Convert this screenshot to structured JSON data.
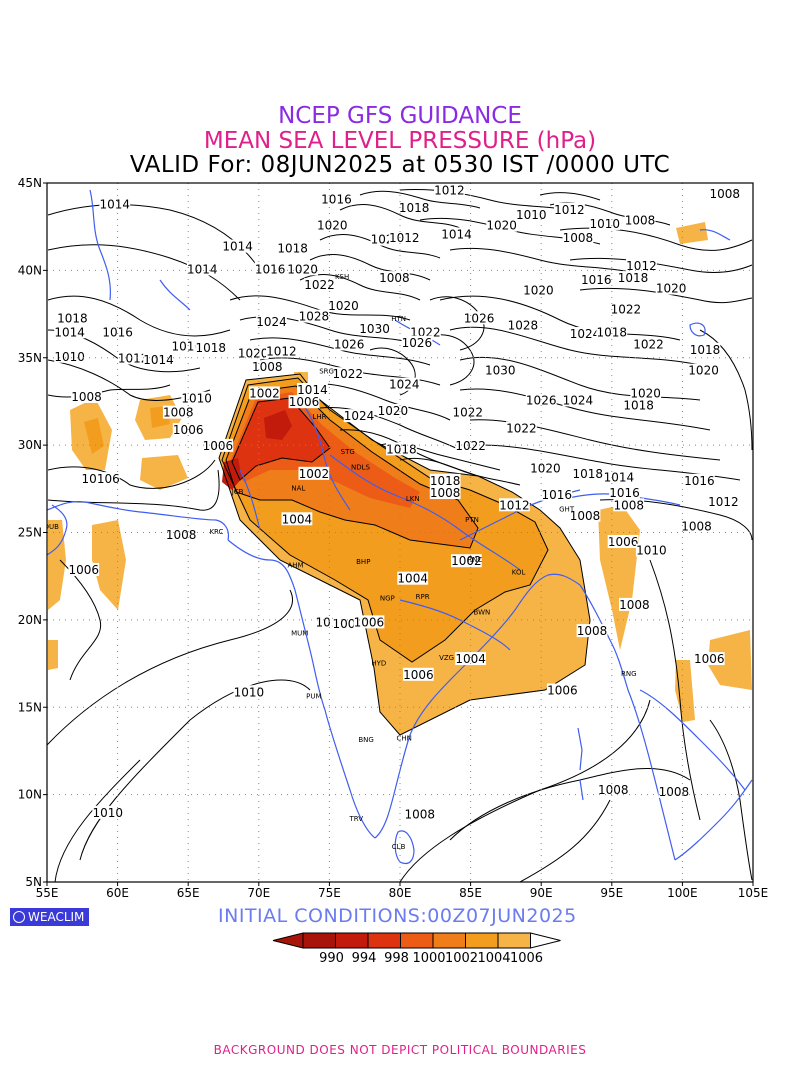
{
  "header": {
    "title_line1": "NCEP GFS GUIDANCE",
    "title_line2": "MEAN SEA LEVEL PRESSURE (hPa)",
    "title_line3": "VALID For: 08JUN2025 at 0530 IST /0000 UTC"
  },
  "colors": {
    "title_line1": "#8a2be2",
    "title_line2": "#e0208a",
    "title_line3": "#000000",
    "init_conditions": "#6b7bf0",
    "footer": "#e0208a",
    "coastline": "#3f5ef0",
    "contour": "#000000",
    "shade_1006": "#f7b446",
    "shade_1004": "#f29d1e",
    "shade_1002": "#ef7d1a",
    "shade_1000": "#ec5c16",
    "shade_998": "#dd3311",
    "shade_994": "#c21b0c",
    "shade_990": "#a8140a"
  },
  "map": {
    "lon_labels": [
      "55E",
      "60E",
      "65E",
      "70E",
      "75E",
      "80E",
      "85E",
      "90E",
      "95E",
      "100E",
      "105E"
    ],
    "lat_labels": [
      "45N",
      "40N",
      "35N",
      "30N",
      "25N",
      "20N",
      "15N",
      "10N",
      "5N"
    ],
    "contour_labels": [
      {
        "text": "1014",
        "lon": 59.8,
        "lat": 43.7
      },
      {
        "text": "1016",
        "lon": 75.5,
        "lat": 44.0
      },
      {
        "text": "1012",
        "lon": 83.5,
        "lat": 44.5
      },
      {
        "text": "1018",
        "lon": 81.0,
        "lat": 43.5
      },
      {
        "text": "1020",
        "lon": 75.2,
        "lat": 42.5
      },
      {
        "text": "1022",
        "lon": 79.0,
        "lat": 41.7
      },
      {
        "text": "1012",
        "lon": 80.3,
        "lat": 41.8
      },
      {
        "text": "1014",
        "lon": 84.0,
        "lat": 42.0
      },
      {
        "text": "1020",
        "lon": 87.2,
        "lat": 42.5
      },
      {
        "text": "1010",
        "lon": 89.3,
        "lat": 43.1
      },
      {
        "text": "1012",
        "lon": 92.0,
        "lat": 43.4
      },
      {
        "text": "1008",
        "lon": 97.0,
        "lat": 42.8
      },
      {
        "text": "1010",
        "lon": 94.5,
        "lat": 42.6
      },
      {
        "text": "1008",
        "lon": 92.6,
        "lat": 41.8
      },
      {
        "text": "1008",
        "lon": 103.0,
        "lat": 44.3
      },
      {
        "text": "1014",
        "lon": 68.5,
        "lat": 41.3
      },
      {
        "text": "1018",
        "lon": 72.4,
        "lat": 41.2
      },
      {
        "text": "1014",
        "lon": 66.0,
        "lat": 40.0
      },
      {
        "text": "1016",
        "lon": 70.8,
        "lat": 40.0
      },
      {
        "text": "1020",
        "lon": 73.1,
        "lat": 40.0
      },
      {
        "text": "1022",
        "lon": 74.3,
        "lat": 39.1
      },
      {
        "text": "1008",
        "lon": 79.6,
        "lat": 39.5
      },
      {
        "text": "1012",
        "lon": 97.1,
        "lat": 40.2
      },
      {
        "text": "1016",
        "lon": 93.9,
        "lat": 39.4
      },
      {
        "text": "1018",
        "lon": 96.5,
        "lat": 39.5
      },
      {
        "text": "1020",
        "lon": 99.2,
        "lat": 38.9
      },
      {
        "text": "1020",
        "lon": 89.8,
        "lat": 38.8
      },
      {
        "text": "1022",
        "lon": 96.0,
        "lat": 37.7
      },
      {
        "text": "1018",
        "lon": 56.8,
        "lat": 37.2
      },
      {
        "text": "1016",
        "lon": 60.0,
        "lat": 36.4
      },
      {
        "text": "1014",
        "lon": 56.6,
        "lat": 36.4
      },
      {
        "text": "1024",
        "lon": 70.9,
        "lat": 37.0
      },
      {
        "text": "1028",
        "lon": 73.9,
        "lat": 37.3
      },
      {
        "text": "1020",
        "lon": 76.0,
        "lat": 37.9
      },
      {
        "text": "1030",
        "lon": 78.2,
        "lat": 36.6
      },
      {
        "text": "1022",
        "lon": 81.8,
        "lat": 36.4
      },
      {
        "text": "1026",
        "lon": 85.6,
        "lat": 37.2
      },
      {
        "text": "1028",
        "lon": 88.7,
        "lat": 36.8
      },
      {
        "text": "1024",
        "lon": 93.1,
        "lat": 36.3
      },
      {
        "text": "1018",
        "lon": 95.0,
        "lat": 36.4
      },
      {
        "text": "1022",
        "lon": 97.6,
        "lat": 35.7
      },
      {
        "text": "1018",
        "lon": 101.6,
        "lat": 35.4
      },
      {
        "text": "1010",
        "lon": 56.6,
        "lat": 35.0
      },
      {
        "text": "1012",
        "lon": 61.1,
        "lat": 34.9
      },
      {
        "text": "1014",
        "lon": 62.9,
        "lat": 34.8
      },
      {
        "text": "1016",
        "lon": 64.9,
        "lat": 35.6
      },
      {
        "text": "1018",
        "lon": 66.6,
        "lat": 35.5
      },
      {
        "text": "1020",
        "lon": 69.6,
        "lat": 35.2
      },
      {
        "text": "1012",
        "lon": 71.6,
        "lat": 35.3
      },
      {
        "text": "1026",
        "lon": 76.4,
        "lat": 35.7
      },
      {
        "text": "1026",
        "lon": 81.2,
        "lat": 35.8
      },
      {
        "text": "1008",
        "lon": 70.6,
        "lat": 34.4
      },
      {
        "text": "1022",
        "lon": 76.3,
        "lat": 34.0
      },
      {
        "text": "1024",
        "lon": 80.3,
        "lat": 33.4
      },
      {
        "text": "1030",
        "lon": 87.1,
        "lat": 34.2
      },
      {
        "text": "1020",
        "lon": 101.5,
        "lat": 34.2
      },
      {
        "text": "1008",
        "lon": 57.8,
        "lat": 32.7
      },
      {
        "text": "1010",
        "lon": 65.6,
        "lat": 32.6
      },
      {
        "text": "1008",
        "lon": 64.3,
        "lat": 31.8
      },
      {
        "text": "1002",
        "lon": 70.4,
        "lat": 32.9
      },
      {
        "text": "1014",
        "lon": 73.8,
        "lat": 33.1
      },
      {
        "text": "1006",
        "lon": 73.2,
        "lat": 32.4
      },
      {
        "text": "1026",
        "lon": 90.0,
        "lat": 32.5
      },
      {
        "text": "1024",
        "lon": 92.6,
        "lat": 32.5
      },
      {
        "text": "1020",
        "lon": 97.4,
        "lat": 32.9
      },
      {
        "text": "1018",
        "lon": 96.9,
        "lat": 32.2
      },
      {
        "text": "1006",
        "lon": 65.0,
        "lat": 30.8
      },
      {
        "text": "1024",
        "lon": 77.1,
        "lat": 31.6
      },
      {
        "text": "1020",
        "lon": 79.5,
        "lat": 31.9
      },
      {
        "text": "1022",
        "lon": 84.8,
        "lat": 31.8
      },
      {
        "text": "1022",
        "lon": 88.6,
        "lat": 30.9
      },
      {
        "text": "1006",
        "lon": 67.1,
        "lat": 29.9
      },
      {
        "text": "1018",
        "lon": 80.1,
        "lat": 29.7
      },
      {
        "text": "1022",
        "lon": 85.0,
        "lat": 29.9
      },
      {
        "text": "1020",
        "lon": 90.3,
        "lat": 28.6
      },
      {
        "text": "1018",
        "lon": 93.3,
        "lat": 28.3
      },
      {
        "text": "1014",
        "lon": 95.5,
        "lat": 28.1
      },
      {
        "text": "1016",
        "lon": 101.2,
        "lat": 27.9
      },
      {
        "text": "1016",
        "lon": 95.9,
        "lat": 27.2
      },
      {
        "text": "1012",
        "lon": 102.9,
        "lat": 26.7
      },
      {
        "text": "1008",
        "lon": 96.2,
        "lat": 26.5
      },
      {
        "text": "10106",
        "lon": 58.8,
        "lat": 28.0
      },
      {
        "text": "1002",
        "lon": 73.9,
        "lat": 28.3
      },
      {
        "text": "1018",
        "lon": 83.2,
        "lat": 27.9
      },
      {
        "text": "1016",
        "lon": 91.1,
        "lat": 27.1
      },
      {
        "text": "1012",
        "lon": 88.1,
        "lat": 26.5
      },
      {
        "text": "1008",
        "lon": 93.1,
        "lat": 25.9
      },
      {
        "text": "1008",
        "lon": 101.0,
        "lat": 25.3
      },
      {
        "text": "1008",
        "lon": 83.2,
        "lat": 27.2
      },
      {
        "text": "1004",
        "lon": 72.7,
        "lat": 25.7
      },
      {
        "text": "1008",
        "lon": 64.5,
        "lat": 24.8
      },
      {
        "text": "1006",
        "lon": 95.8,
        "lat": 24.4
      },
      {
        "text": "1010",
        "lon": 97.8,
        "lat": 23.9
      },
      {
        "text": "1002",
        "lon": 84.7,
        "lat": 23.3
      },
      {
        "text": "1006",
        "lon": 57.6,
        "lat": 22.8
      },
      {
        "text": "1004",
        "lon": 80.9,
        "lat": 22.3
      },
      {
        "text": "1008",
        "lon": 96.6,
        "lat": 20.8
      },
      {
        "text": "1010",
        "lon": 75.1,
        "lat": 19.8
      },
      {
        "text": "1008",
        "lon": 76.3,
        "lat": 19.7
      },
      {
        "text": "1006",
        "lon": 77.8,
        "lat": 19.8
      },
      {
        "text": "1008",
        "lon": 93.6,
        "lat": 19.3
      },
      {
        "text": "1004",
        "lon": 85.0,
        "lat": 17.7
      },
      {
        "text": "1006",
        "lon": 101.9,
        "lat": 17.7
      },
      {
        "text": "1006",
        "lon": 81.3,
        "lat": 16.8
      },
      {
        "text": "1006",
        "lon": 91.5,
        "lat": 15.9
      },
      {
        "text": "1010",
        "lon": 69.3,
        "lat": 15.8
      },
      {
        "text": "1008",
        "lon": 95.1,
        "lat": 10.2
      },
      {
        "text": "1008",
        "lon": 99.4,
        "lat": 10.1
      },
      {
        "text": "1010",
        "lon": 59.3,
        "lat": 8.9
      },
      {
        "text": "1008",
        "lon": 81.4,
        "lat": 8.8
      }
    ],
    "city_labels": [
      {
        "text": "SRG",
        "lon": 74.8,
        "lat": 34.1
      },
      {
        "text": "LHR",
        "lon": 74.3,
        "lat": 31.5
      },
      {
        "text": "STG",
        "lon": 76.3,
        "lat": 29.5
      },
      {
        "text": "NDLS",
        "lon": 77.2,
        "lat": 28.6
      },
      {
        "text": "JCB",
        "lon": 68.5,
        "lat": 27.2
      },
      {
        "text": "NAL",
        "lon": 72.8,
        "lat": 27.4
      },
      {
        "text": "LKN",
        "lon": 80.9,
        "lat": 26.8
      },
      {
        "text": "PTN",
        "lon": 85.1,
        "lat": 25.6
      },
      {
        "text": "KRC",
        "lon": 67.0,
        "lat": 24.9
      },
      {
        "text": "AHM",
        "lon": 72.6,
        "lat": 23.0
      },
      {
        "text": "BHP",
        "lon": 77.4,
        "lat": 23.2
      },
      {
        "text": "RNC",
        "lon": 85.3,
        "lat": 23.3
      },
      {
        "text": "KOL",
        "lon": 88.4,
        "lat": 22.6
      },
      {
        "text": "RPR",
        "lon": 81.6,
        "lat": 21.2
      },
      {
        "text": "NGP",
        "lon": 79.1,
        "lat": 21.1
      },
      {
        "text": "BWN",
        "lon": 85.8,
        "lat": 20.3
      },
      {
        "text": "MUM",
        "lon": 72.9,
        "lat": 19.1
      },
      {
        "text": "HYD",
        "lon": 78.5,
        "lat": 17.4
      },
      {
        "text": "VZG",
        "lon": 83.3,
        "lat": 17.7
      },
      {
        "text": "PUM",
        "lon": 73.9,
        "lat": 15.5
      },
      {
        "text": "BNG",
        "lon": 77.6,
        "lat": 13.0
      },
      {
        "text": "CHN",
        "lon": 80.3,
        "lat": 13.1
      },
      {
        "text": "TRV",
        "lon": 76.9,
        "lat": 8.5
      },
      {
        "text": "CLB",
        "lon": 79.9,
        "lat": 6.9
      },
      {
        "text": "DUB",
        "lon": 55.3,
        "lat": 25.2
      },
      {
        "text": "GHT",
        "lon": 91.8,
        "lat": 26.2
      },
      {
        "text": "RNG",
        "lon": 96.2,
        "lat": 16.8
      },
      {
        "text": "HTN",
        "lon": 79.9,
        "lat": 37.1
      },
      {
        "text": "KSH",
        "lon": 75.9,
        "lat": 39.5
      }
    ]
  },
  "colorbar": {
    "labels": [
      "990",
      "994",
      "998",
      "1000",
      "1002",
      "1004",
      "1006"
    ]
  },
  "logo_text": "WEACLIM",
  "init_conditions": "INITIAL CONDITIONS:00Z07JUN2025",
  "footer": "BACKGROUND DOES NOT DEPICT POLITICAL BOUNDARIES"
}
